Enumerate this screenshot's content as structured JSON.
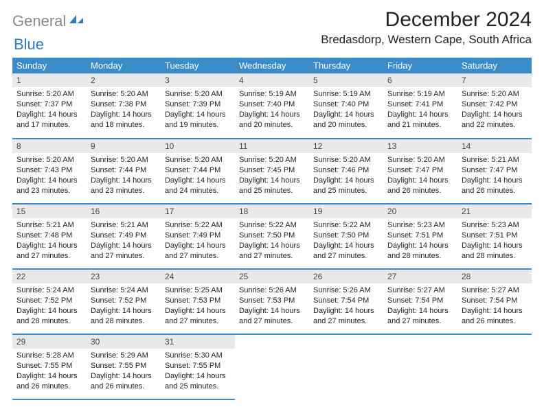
{
  "logo": {
    "part1": "General",
    "part2": "Blue"
  },
  "title": "December 2024",
  "location": "Bredasdorp, Western Cape, South Africa",
  "colors": {
    "header_bg": "#3b8bc9",
    "header_text": "#ffffff",
    "daynum_bg": "#e9e9e9",
    "row_divider": "#3b8bc9",
    "logo_gray": "#8a8a8a",
    "logo_blue": "#2d7bbf",
    "page_bg": "#ffffff"
  },
  "weekdays": [
    "Sunday",
    "Monday",
    "Tuesday",
    "Wednesday",
    "Thursday",
    "Friday",
    "Saturday"
  ],
  "weeks": [
    [
      {
        "n": "1",
        "sr": "5:20 AM",
        "ss": "7:37 PM",
        "dl": "14 hours and 17 minutes."
      },
      {
        "n": "2",
        "sr": "5:20 AM",
        "ss": "7:38 PM",
        "dl": "14 hours and 18 minutes."
      },
      {
        "n": "3",
        "sr": "5:20 AM",
        "ss": "7:39 PM",
        "dl": "14 hours and 19 minutes."
      },
      {
        "n": "4",
        "sr": "5:19 AM",
        "ss": "7:40 PM",
        "dl": "14 hours and 20 minutes."
      },
      {
        "n": "5",
        "sr": "5:19 AM",
        "ss": "7:40 PM",
        "dl": "14 hours and 20 minutes."
      },
      {
        "n": "6",
        "sr": "5:19 AM",
        "ss": "7:41 PM",
        "dl": "14 hours and 21 minutes."
      },
      {
        "n": "7",
        "sr": "5:20 AM",
        "ss": "7:42 PM",
        "dl": "14 hours and 22 minutes."
      }
    ],
    [
      {
        "n": "8",
        "sr": "5:20 AM",
        "ss": "7:43 PM",
        "dl": "14 hours and 23 minutes."
      },
      {
        "n": "9",
        "sr": "5:20 AM",
        "ss": "7:44 PM",
        "dl": "14 hours and 23 minutes."
      },
      {
        "n": "10",
        "sr": "5:20 AM",
        "ss": "7:44 PM",
        "dl": "14 hours and 24 minutes."
      },
      {
        "n": "11",
        "sr": "5:20 AM",
        "ss": "7:45 PM",
        "dl": "14 hours and 25 minutes."
      },
      {
        "n": "12",
        "sr": "5:20 AM",
        "ss": "7:46 PM",
        "dl": "14 hours and 25 minutes."
      },
      {
        "n": "13",
        "sr": "5:20 AM",
        "ss": "7:47 PM",
        "dl": "14 hours and 26 minutes."
      },
      {
        "n": "14",
        "sr": "5:21 AM",
        "ss": "7:47 PM",
        "dl": "14 hours and 26 minutes."
      }
    ],
    [
      {
        "n": "15",
        "sr": "5:21 AM",
        "ss": "7:48 PM",
        "dl": "14 hours and 27 minutes."
      },
      {
        "n": "16",
        "sr": "5:21 AM",
        "ss": "7:49 PM",
        "dl": "14 hours and 27 minutes."
      },
      {
        "n": "17",
        "sr": "5:22 AM",
        "ss": "7:49 PM",
        "dl": "14 hours and 27 minutes."
      },
      {
        "n": "18",
        "sr": "5:22 AM",
        "ss": "7:50 PM",
        "dl": "14 hours and 27 minutes."
      },
      {
        "n": "19",
        "sr": "5:22 AM",
        "ss": "7:50 PM",
        "dl": "14 hours and 27 minutes."
      },
      {
        "n": "20",
        "sr": "5:23 AM",
        "ss": "7:51 PM",
        "dl": "14 hours and 28 minutes."
      },
      {
        "n": "21",
        "sr": "5:23 AM",
        "ss": "7:51 PM",
        "dl": "14 hours and 28 minutes."
      }
    ],
    [
      {
        "n": "22",
        "sr": "5:24 AM",
        "ss": "7:52 PM",
        "dl": "14 hours and 28 minutes."
      },
      {
        "n": "23",
        "sr": "5:24 AM",
        "ss": "7:52 PM",
        "dl": "14 hours and 28 minutes."
      },
      {
        "n": "24",
        "sr": "5:25 AM",
        "ss": "7:53 PM",
        "dl": "14 hours and 27 minutes."
      },
      {
        "n": "25",
        "sr": "5:26 AM",
        "ss": "7:53 PM",
        "dl": "14 hours and 27 minutes."
      },
      {
        "n": "26",
        "sr": "5:26 AM",
        "ss": "7:54 PM",
        "dl": "14 hours and 27 minutes."
      },
      {
        "n": "27",
        "sr": "5:27 AM",
        "ss": "7:54 PM",
        "dl": "14 hours and 27 minutes."
      },
      {
        "n": "28",
        "sr": "5:27 AM",
        "ss": "7:54 PM",
        "dl": "14 hours and 26 minutes."
      }
    ],
    [
      {
        "n": "29",
        "sr": "5:28 AM",
        "ss": "7:55 PM",
        "dl": "14 hours and 26 minutes."
      },
      {
        "n": "30",
        "sr": "5:29 AM",
        "ss": "7:55 PM",
        "dl": "14 hours and 26 minutes."
      },
      {
        "n": "31",
        "sr": "5:30 AM",
        "ss": "7:55 PM",
        "dl": "14 hours and 25 minutes."
      },
      null,
      null,
      null,
      null
    ]
  ],
  "labels": {
    "sunrise": "Sunrise:",
    "sunset": "Sunset:",
    "daylight": "Daylight:"
  }
}
